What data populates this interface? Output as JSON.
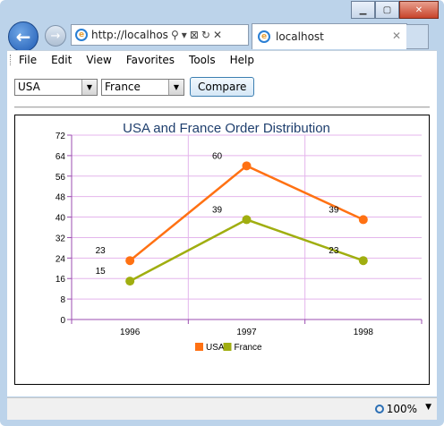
{
  "browser": {
    "address_url": "http://localhost:",
    "tab_title": "localhost",
    "zoom": "100%",
    "menu": [
      "File",
      "Edit",
      "View",
      "Favorites",
      "Tools",
      "Help"
    ]
  },
  "controls": {
    "country1": "USA",
    "country2": "France",
    "compare_label": "Compare"
  },
  "colors": {
    "usa": "#ff7113",
    "france": "#a0ae10",
    "grid": "#e4b5ec",
    "axis": "#9b4db0",
    "title": "#1f3f6e"
  },
  "chart_data": {
    "type": "line",
    "title": "USA and France Order Distribution",
    "categories": [
      "1996",
      "1997",
      "1998"
    ],
    "ylim": [
      0,
      72
    ],
    "yticks": [
      "0",
      "8",
      "16",
      "24",
      "32",
      "40",
      "48",
      "56",
      "64",
      "72"
    ],
    "grid": true,
    "legend": "bottom",
    "series": [
      {
        "name": "USA",
        "values": [
          23,
          60,
          39
        ]
      },
      {
        "name": "France",
        "values": [
          15,
          39,
          23
        ]
      }
    ]
  }
}
